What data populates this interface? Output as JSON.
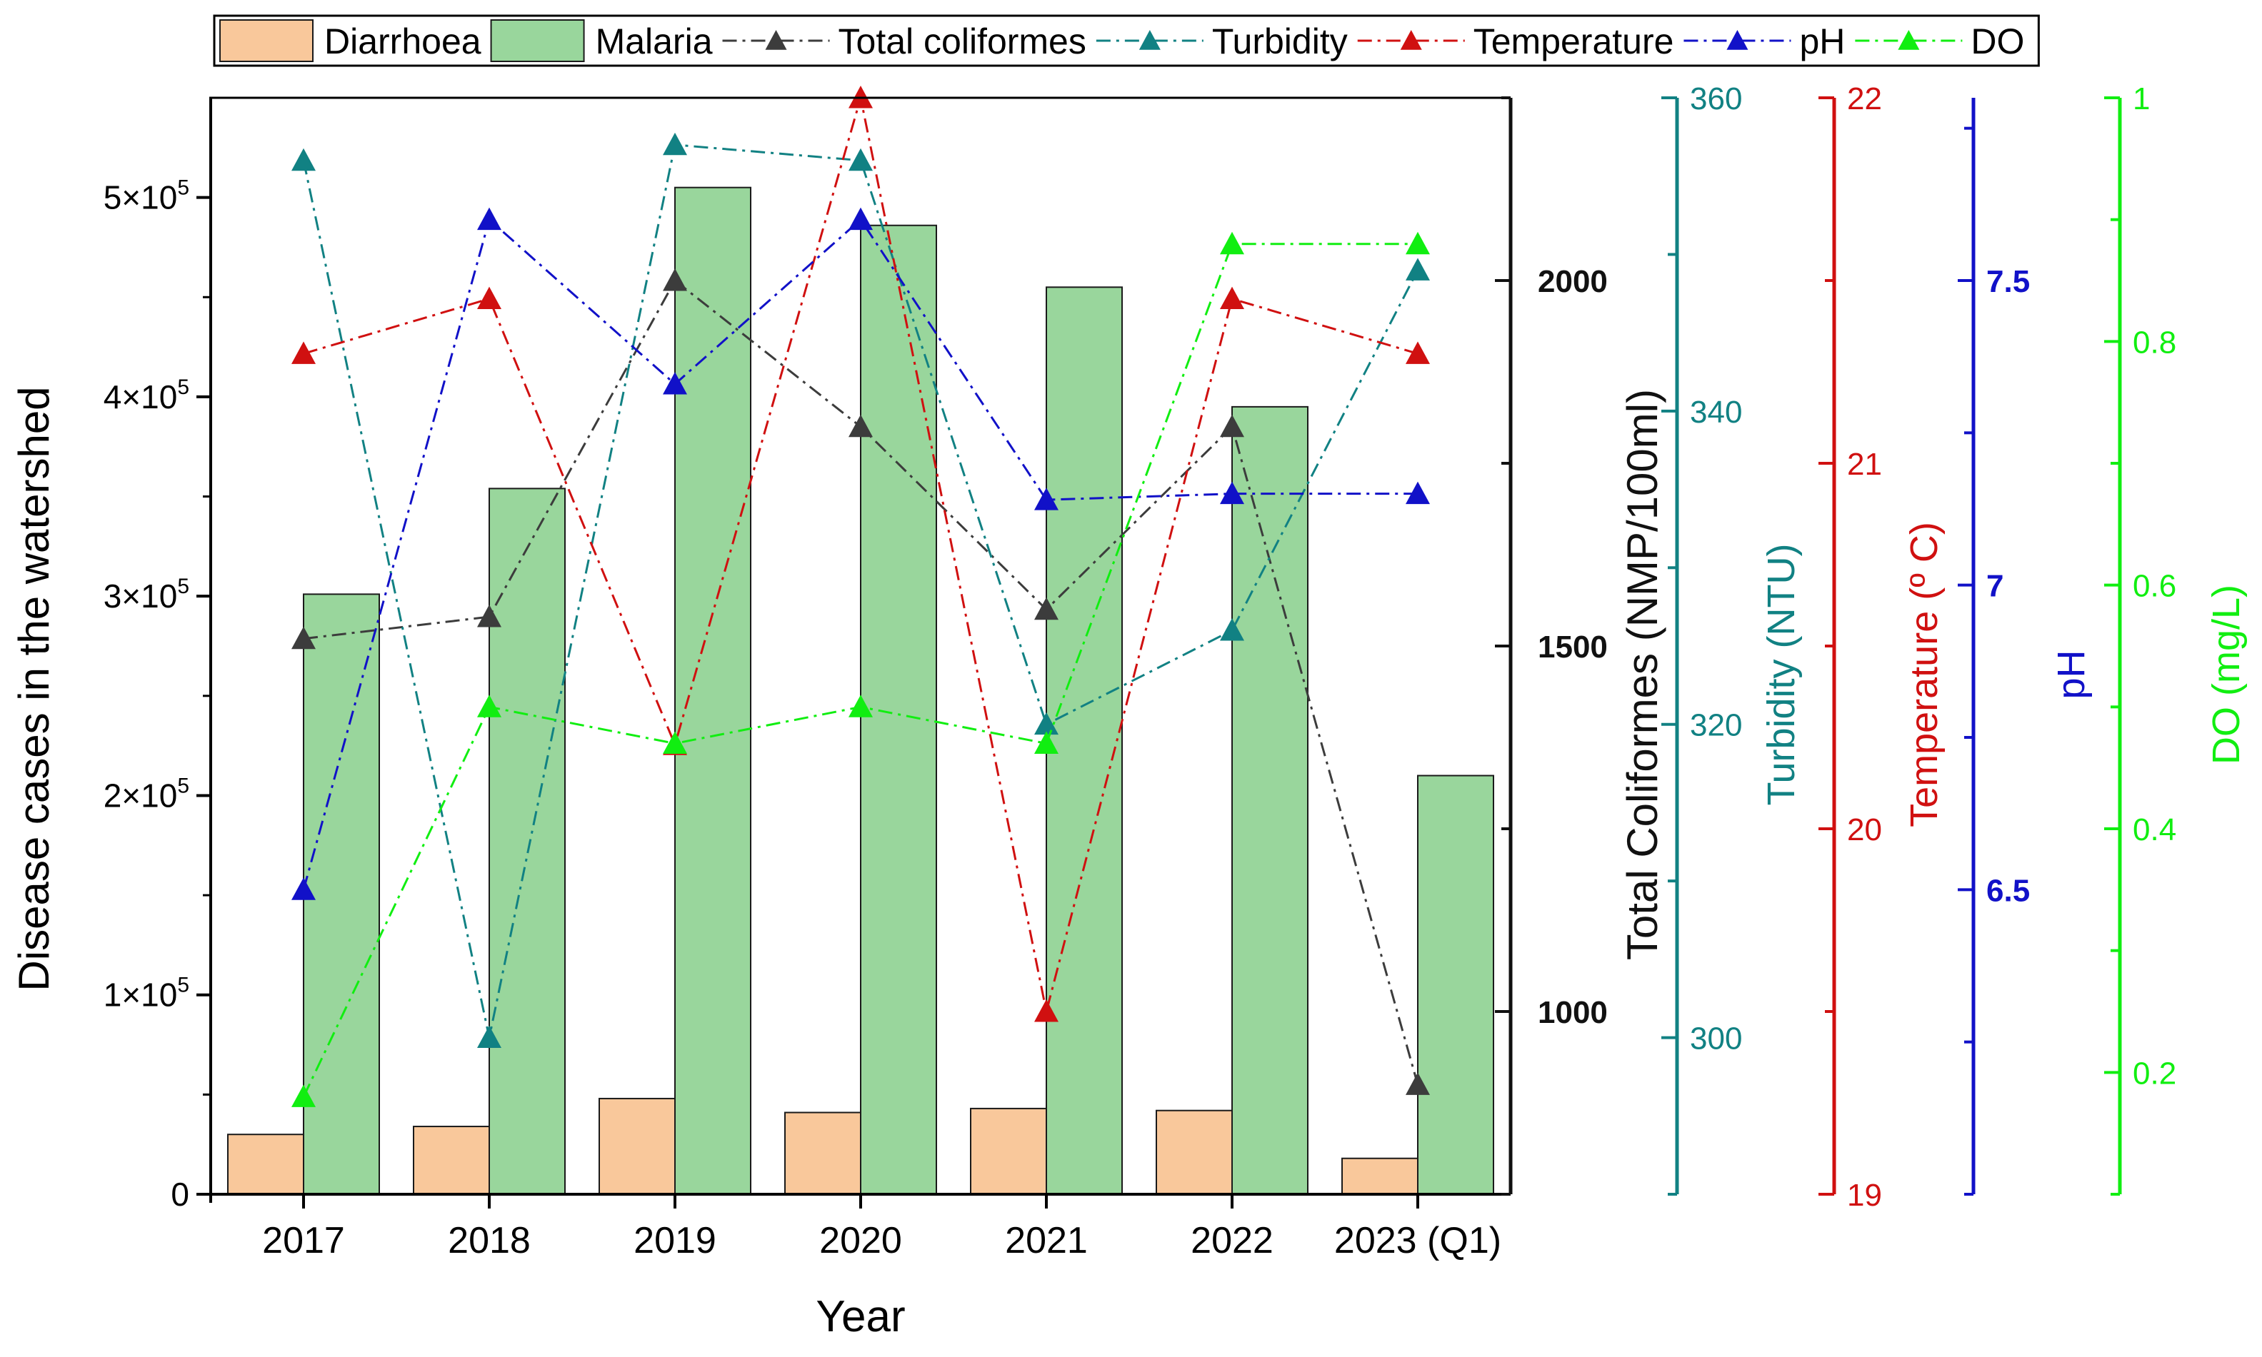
{
  "chart_data": {
    "type": "bar",
    "categories": [
      "2017",
      "2018",
      "2019",
      "2020",
      "2021",
      "2022",
      "2023 (Q1)"
    ],
    "xlabel": "Year",
    "bar_series": [
      {
        "name": "Diarrhoea",
        "color": "#f9c89b",
        "values": [
          30000,
          34000,
          48000,
          41000,
          43000,
          42000,
          18000
        ]
      },
      {
        "name": "Malaria",
        "color": "#99d69c",
        "values": [
          301000,
          354000,
          505000,
          486000,
          455000,
          395000,
          210000
        ]
      }
    ],
    "line_series": [
      {
        "name": "Total coliformes",
        "color": "#3c3c3c",
        "axis": "coliformes",
        "values": [
          1510,
          1540,
          2000,
          1800,
          1550,
          1800,
          900
        ]
      },
      {
        "name": "Turbidity",
        "color": "#118183",
        "axis": "turbidity",
        "values": [
          356,
          300,
          357,
          356,
          320,
          326,
          349
        ]
      },
      {
        "name": "Temperature",
        "color": "#d01010",
        "axis": "temperature",
        "values": [
          21.3,
          21.45,
          20.23,
          22.0,
          19.5,
          21.45,
          21.3
        ]
      },
      {
        "name": "pH",
        "color": "#1111c8",
        "axis": "ph",
        "values": [
          6.5,
          7.6,
          7.33,
          7.6,
          7.14,
          7.15,
          7.15
        ]
      },
      {
        "name": "DO",
        "color": "#11ee11",
        "axis": "do",
        "values": [
          0.18,
          0.5,
          0.47,
          0.5,
          0.47,
          0.88,
          0.88
        ]
      }
    ],
    "axes": {
      "left": {
        "label": "Disease cases in the watershed",
        "ylim": [
          0,
          550000
        ],
        "ticks": [
          0,
          100000,
          200000,
          300000,
          400000,
          500000
        ],
        "tick_labels": [
          {
            "base": "0",
            "exp": ""
          },
          {
            "base": "1×10",
            "exp": "5"
          },
          {
            "base": "2×10",
            "exp": "5"
          },
          {
            "base": "3×10",
            "exp": "5"
          },
          {
            "base": "4×10",
            "exp": "5"
          },
          {
            "base": "5×10",
            "exp": "5"
          }
        ]
      },
      "coliformes": {
        "label": "Total Coliformes (NMP/100ml)",
        "color": "#111111",
        "ylim": [
          750,
          2250
        ],
        "labeled_ticks": [
          1000,
          1500,
          2000
        ],
        "tick_step": 250
      },
      "turbidity": {
        "label": "Turbidity (NTU)",
        "color": "#118183",
        "ylim": [
          290,
          360
        ],
        "labeled_ticks": [
          300,
          320,
          340,
          360
        ],
        "tick_step": 10
      },
      "temperature": {
        "label": "Temperature (º C)",
        "color": "#d01010",
        "ylim": [
          19,
          22
        ],
        "labeled_ticks": [
          19,
          20,
          21,
          22
        ],
        "tick_step": 0.5
      },
      "ph": {
        "label": "pH",
        "color": "#1111c8",
        "ylim": [
          6.0,
          7.8
        ],
        "labeled_ticks": [
          6.5,
          7.0,
          7.5
        ],
        "tick_step": 0.25
      },
      "do": {
        "label": "DO (mg/L)",
        "color": "#11ee11",
        "ylim": [
          0.1,
          1.0
        ],
        "labeled_ticks": [
          0.2,
          0.4,
          0.6,
          0.8,
          1.0
        ],
        "tick_step": 0.1
      }
    },
    "legend": {
      "placement": "top",
      "entries": [
        {
          "label": "Diarrhoea",
          "kind": "bar",
          "series": "Diarrhoea"
        },
        {
          "label": "Malaria",
          "kind": "bar",
          "series": "Malaria"
        },
        {
          "label": "Total coliformes",
          "kind": "line",
          "series": "Total coliformes"
        },
        {
          "label": "Turbidity",
          "kind": "line",
          "series": "Turbidity"
        },
        {
          "label": "Temperature",
          "kind": "line",
          "series": "Temperature"
        },
        {
          "label": "pH",
          "kind": "line",
          "series": "pH"
        },
        {
          "label": "DO",
          "kind": "line",
          "series": "DO"
        }
      ]
    }
  }
}
